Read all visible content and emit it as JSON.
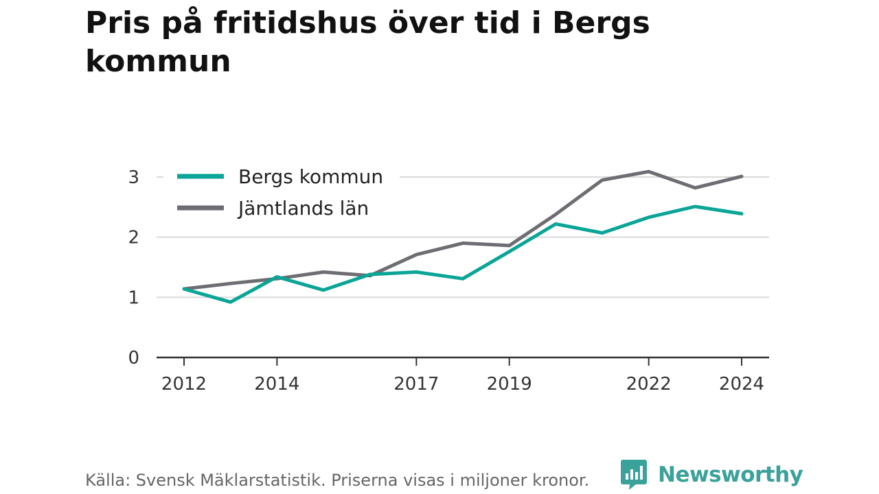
{
  "title": "Pris på fritidshus över tid i Bergs kommun",
  "footer": {
    "source": "Källa: Svensk Mäklarstatistik. Priserna visas i miljoner kronor.",
    "brand": "Newsworthy",
    "brand_icon": "newsworthy-logo-icon"
  },
  "colors": {
    "bergs": "#0aa597",
    "jamtland": "#6d6d73",
    "grid": "#d9d9d9",
    "axis": "#333333",
    "brand": "#3aa29a"
  },
  "chart_data": {
    "type": "line",
    "title": "Pris på fritidshus över tid i Bergs kommun",
    "xlabel": "",
    "ylabel": "",
    "x": [
      2012,
      2013,
      2014,
      2015,
      2016,
      2017,
      2018,
      2019,
      2020,
      2021,
      2022,
      2023,
      2024
    ],
    "x_ticks": [
      "2012",
      "2014",
      "2017",
      "2019",
      "2022",
      "2024"
    ],
    "y_ticks": [
      "0",
      "1",
      "2",
      "3"
    ],
    "xlim": [
      2012,
      2024
    ],
    "ylim": [
      0,
      3
    ],
    "grid": "horizontal",
    "legend": "top-left",
    "series": [
      {
        "name": "Bergs kommun",
        "values": [
          1.14,
          0.92,
          1.34,
          1.12,
          1.38,
          1.42,
          1.31,
          1.76,
          2.22,
          2.07,
          2.33,
          2.51,
          2.39
        ]
      },
      {
        "name": "Jämtlands län",
        "values": [
          1.14,
          1.23,
          1.31,
          1.42,
          1.36,
          1.71,
          1.9,
          1.86,
          2.38,
          2.95,
          3.09,
          2.82,
          3.01
        ]
      }
    ]
  }
}
